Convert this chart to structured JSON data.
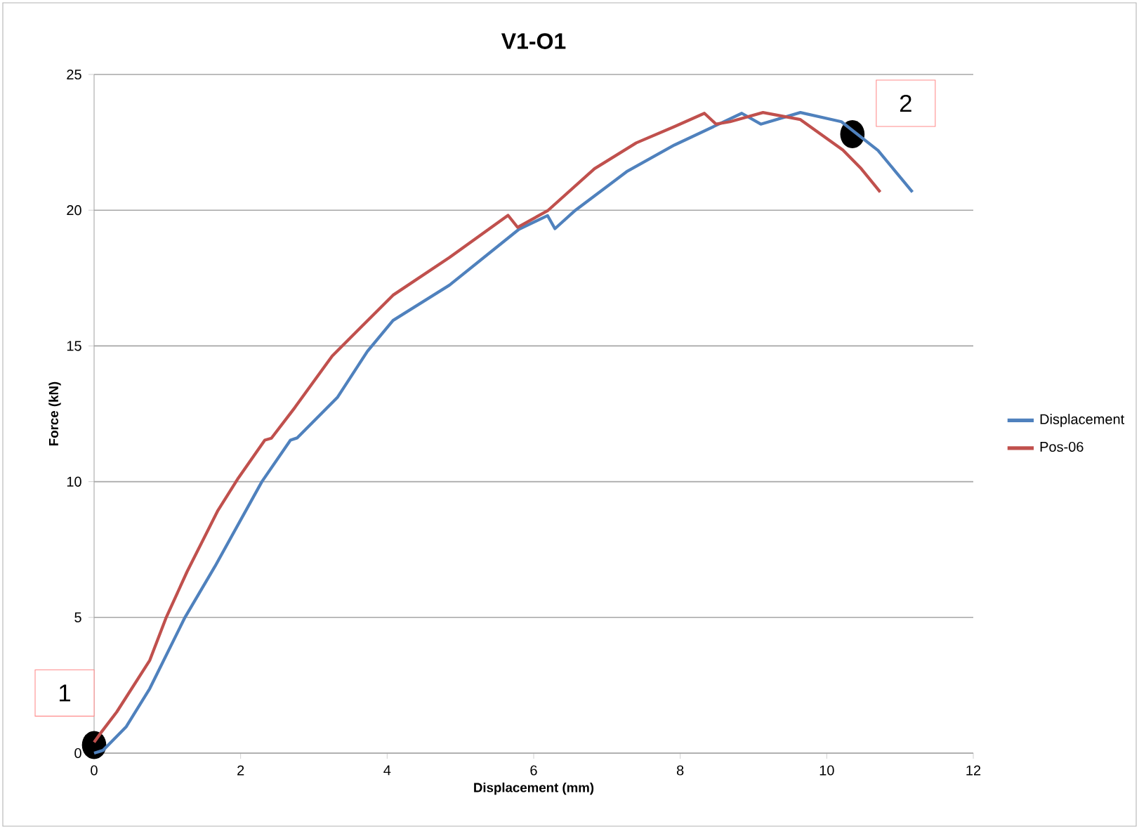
{
  "chart_data": {
    "type": "line",
    "title": "V1-O1",
    "xlabel": "Displacement (mm)",
    "ylabel": "Force (kN)",
    "xlim": [
      0,
      12
    ],
    "ylim": [
      0,
      25
    ],
    "xticks": [
      0,
      2,
      4,
      6,
      8,
      10,
      12
    ],
    "yticks": [
      0,
      5,
      10,
      15,
      20,
      25
    ],
    "grid": "y",
    "legend": "right",
    "marker": "none",
    "line_style": "solid",
    "series": [
      {
        "name": "Displacement",
        "color": "#4f81bd",
        "x": [
          0,
          0.12,
          0.44,
          0.76,
          1.24,
          1.65,
          2.29,
          2.68,
          2.77,
          3.32,
          3.73,
          4.08,
          4.85,
          5.8,
          6.19,
          6.29,
          6.57,
          7.28,
          7.92,
          8.84,
          9.1,
          9.64,
          10.2,
          10.7,
          11.17
        ],
        "values": [
          0,
          0.1,
          0.98,
          2.38,
          5,
          6.88,
          10,
          11.53,
          11.61,
          13.1,
          14.8,
          15.94,
          17.24,
          19.3,
          19.8,
          19.32,
          20,
          21.44,
          22.4,
          23.57,
          23.17,
          23.6,
          23.26,
          22.2,
          20.67
        ]
      },
      {
        "name": "Pos-06",
        "color": "#c0504d",
        "x": [
          0,
          0.09,
          0.31,
          0.76,
          0.98,
          1.27,
          1.69,
          1.97,
          2.33,
          2.42,
          2.74,
          3.25,
          4.08,
          4.85,
          5.65,
          5.78,
          6.19,
          6.83,
          7.4,
          7.92,
          8.33,
          8.49,
          8.68,
          9.13,
          9.64,
          10.22,
          10.47,
          10.73
        ],
        "values": [
          0.4,
          0.74,
          1.52,
          3.42,
          4.97,
          6.69,
          8.94,
          10.14,
          11.53,
          11.6,
          12.73,
          14.63,
          16.87,
          18.26,
          19.81,
          19.37,
          19.98,
          21.53,
          22.48,
          23.08,
          23.57,
          23.17,
          23.26,
          23.6,
          23.34,
          22.22,
          21.53,
          20.67
        ]
      }
    ],
    "annotations": [
      {
        "text": "1",
        "x": 0,
        "y": 0.3
      },
      {
        "text": "2",
        "x": 10.35,
        "y": 22.8
      }
    ]
  }
}
